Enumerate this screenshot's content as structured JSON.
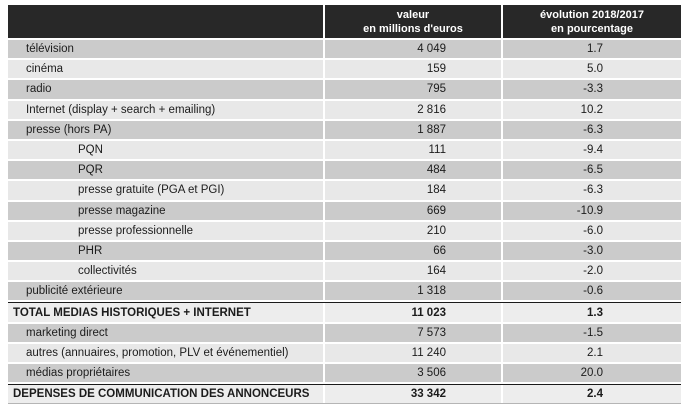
{
  "table": {
    "header": {
      "label_col": "",
      "value_col_line1": "valeur",
      "value_col_line2": "en millions d'euros",
      "evolution_col_line1": "évolution 2018/2017",
      "evolution_col_line2": "en pourcentage"
    },
    "rows": [
      {
        "label": "télévision",
        "value": "4 049",
        "evolution": "1.7"
      },
      {
        "label": "cinéma",
        "value": "159",
        "evolution": "5.0"
      },
      {
        "label": "radio",
        "value": "795",
        "evolution": "-3.3"
      },
      {
        "label": "Internet (display + search + emailing)",
        "value": "2 816",
        "evolution": "10.2"
      },
      {
        "label": "presse (hors PA)",
        "value": "1 887",
        "evolution": "-6.3"
      },
      {
        "label": "PQN",
        "value": "111",
        "evolution": "-9.4"
      },
      {
        "label": "PQR",
        "value": "484",
        "evolution": "-6.5"
      },
      {
        "label": "presse gratuite (PGA et PGI)",
        "value": "184",
        "evolution": "-6.3"
      },
      {
        "label": "presse magazine",
        "value": "669",
        "evolution": "-10.9"
      },
      {
        "label": "presse professionnelle",
        "value": "210",
        "evolution": "-6.0"
      },
      {
        "label": "PHR",
        "value": "66",
        "evolution": "-3.0"
      },
      {
        "label": "collectivités",
        "value": "164",
        "evolution": "-2.0"
      },
      {
        "label": "publicité extérieure",
        "value": "1 318",
        "evolution": "-0.6"
      },
      {
        "label": "TOTAL MEDIAS HISTORIQUES + INTERNET",
        "value": "11 023",
        "evolution": "1.3"
      },
      {
        "label": "marketing direct",
        "value": "7 573",
        "evolution": "-1.5"
      },
      {
        "label": "autres (annuaires, promotion, PLV et événementiel)",
        "value": "11 240",
        "evolution": "2.1"
      },
      {
        "label": "médias propriétaires",
        "value": "3 506",
        "evolution": "20.0"
      },
      {
        "label": "DEPENSES DE COMMUNICATION DES ANNONCEURS",
        "value": "33 342",
        "evolution": "2.4"
      }
    ]
  },
  "colors": {
    "header_bg": "#282828",
    "header_text": "#ffffff",
    "row_dark": "#cbcbcb",
    "row_light": "#e8e8e8",
    "total_row_bg": "#ededed",
    "text": "#1c1c1c"
  },
  "chart_data": {
    "type": "table",
    "title": "",
    "columns": [
      "",
      "valeur en millions d'euros",
      "évolution 2018/2017 en pourcentage"
    ],
    "rows": [
      [
        "télévision",
        4049,
        1.7
      ],
      [
        "cinéma",
        159,
        5.0
      ],
      [
        "radio",
        795,
        -3.3
      ],
      [
        "Internet (display + search + emailing)",
        2816,
        10.2
      ],
      [
        "presse (hors PA)",
        1887,
        -6.3
      ],
      [
        "PQN",
        111,
        -9.4
      ],
      [
        "PQR",
        484,
        -6.5
      ],
      [
        "presse gratuite (PGA et PGI)",
        184,
        -6.3
      ],
      [
        "presse magazine",
        669,
        -10.9
      ],
      [
        "presse professionnelle",
        210,
        -6.0
      ],
      [
        "PHR",
        66,
        -3.0
      ],
      [
        "collectivités",
        164,
        -2.0
      ],
      [
        "publicité extérieure",
        1318,
        -0.6
      ],
      [
        "TOTAL MEDIAS HISTORIQUES + INTERNET",
        11023,
        1.3
      ],
      [
        "marketing direct",
        7573,
        -1.5
      ],
      [
        "autres (annuaires, promotion, PLV et événementiel)",
        11240,
        2.1
      ],
      [
        "médias propriétaires",
        3506,
        20.0
      ],
      [
        "DEPENSES DE COMMUNICATION DES ANNONCEURS",
        33342,
        2.4
      ]
    ]
  }
}
